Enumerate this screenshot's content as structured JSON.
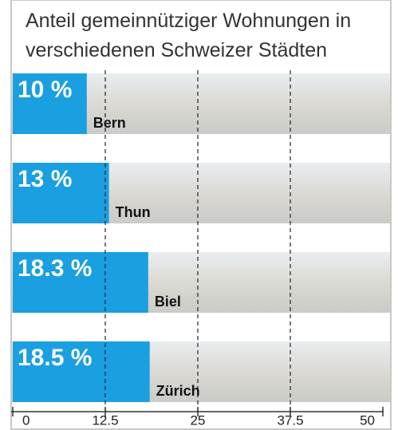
{
  "chart_data": {
    "type": "hbar",
    "title": "Anteil gemeinnütziger Wohnungen in verschiedenen Schweizer Städten",
    "categories": [
      "Bern",
      "Thun",
      "Biel",
      "Zürich"
    ],
    "values": [
      10,
      13,
      18.3,
      18.5
    ],
    "value_labels": [
      "10 %",
      "13 %",
      "18.3 %",
      "18.5 %"
    ],
    "color": "#1a9fe0",
    "xlim": [
      0,
      50
    ],
    "xticks": [
      0,
      12.5,
      25,
      37.5,
      50
    ],
    "grid": true
  }
}
